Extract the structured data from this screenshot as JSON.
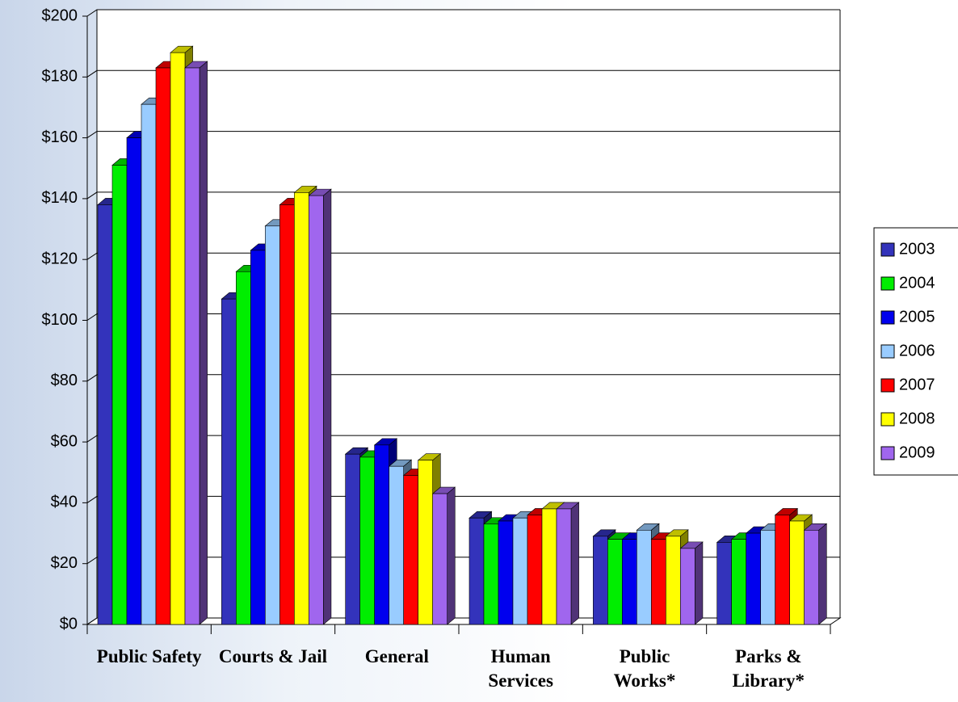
{
  "chart_data": {
    "type": "bar3d",
    "categories": [
      "Public Safety",
      "Courts & Jail",
      "General",
      "Human Services",
      "Public Works*",
      "Parks & Library*"
    ],
    "series": [
      {
        "name": "2003",
        "color": "#3333bb",
        "values": [
          138,
          107,
          56,
          35,
          29,
          27
        ]
      },
      {
        "name": "2004",
        "color": "#00ee00",
        "values": [
          151,
          116,
          55,
          33,
          28,
          28
        ]
      },
      {
        "name": "2005",
        "color": "#0000ee",
        "values": [
          160,
          123,
          59,
          34,
          28,
          30
        ]
      },
      {
        "name": "2006",
        "color": "#99ccff",
        "values": [
          171,
          131,
          52,
          35,
          31,
          31
        ]
      },
      {
        "name": "2007",
        "color": "#ff0000",
        "values": [
          183,
          138,
          49,
          36,
          28,
          36
        ]
      },
      {
        "name": "2008",
        "color": "#ffff00",
        "values": [
          188,
          142,
          54,
          38,
          29,
          34
        ]
      },
      {
        "name": "2009",
        "color": "#a066ee",
        "values": [
          183,
          141,
          43,
          38,
          25,
          31
        ]
      }
    ],
    "ylim": [
      0,
      200
    ],
    "yticks": [
      {
        "value": 0,
        "label": "$0"
      },
      {
        "value": 20,
        "label": "$20"
      },
      {
        "value": 40,
        "label": "$40"
      },
      {
        "value": 60,
        "label": "$60"
      },
      {
        "value": 80,
        "label": "$80"
      },
      {
        "value": 100,
        "label": "$100"
      },
      {
        "value": 120,
        "label": "$120"
      },
      {
        "value": 140,
        "label": "$140"
      },
      {
        "value": 160,
        "label": "$160"
      },
      {
        "value": 180,
        "label": "$180"
      },
      {
        "value": 200,
        "label": "$200"
      }
    ],
    "grid": true,
    "legend": "right"
  }
}
